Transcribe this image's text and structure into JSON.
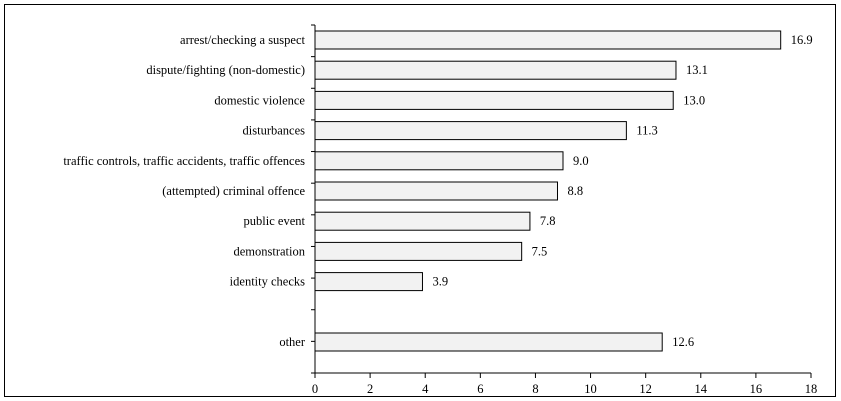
{
  "chart_data": {
    "type": "bar",
    "orientation": "horizontal",
    "categories": [
      "arrest/checking a suspect",
      "dispute/fighting (non-domestic)",
      "domestic violence",
      "disturbances",
      "traffic controls, traffic accidents, traffic offences",
      "(attempted) criminal offence",
      "public event",
      "demonstration",
      "identity checks",
      "",
      "other"
    ],
    "values": [
      16.9,
      13.1,
      13.0,
      11.3,
      9.0,
      8.8,
      7.8,
      7.5,
      3.9,
      null,
      12.6
    ],
    "value_labels": [
      "16.9",
      "13.1",
      "13.0",
      "11.3",
      "9.0",
      "8.8",
      "7.8",
      "7.5",
      "3.9",
      "",
      "12.6"
    ],
    "xlim": [
      0,
      18
    ],
    "x_ticks": [
      0,
      2,
      4,
      6,
      8,
      10,
      12,
      14,
      16,
      18
    ],
    "grid": false,
    "legend": "none",
    "bar_fill": "#f2f2f2",
    "bar_stroke": "#000000"
  }
}
